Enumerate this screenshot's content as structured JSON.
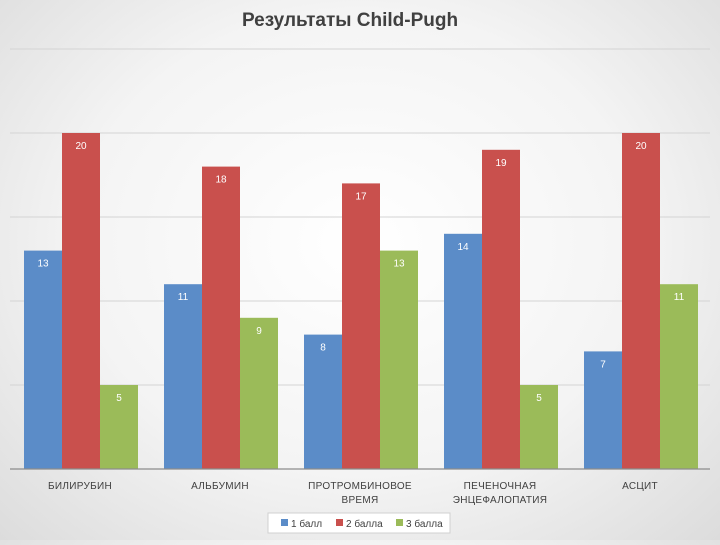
{
  "chart_data": {
    "type": "bar",
    "title": "Результаты Child-Pugh",
    "xlabel": "",
    "ylabel": "",
    "categories": [
      [
        "БИЛИРУБИН"
      ],
      [
        "АЛЬБУМИН"
      ],
      [
        "ПРОТРОМБИНОВОЕ",
        "ВРЕМЯ"
      ],
      [
        "ПЕЧЕНОЧНАЯ",
        "ЭНЦЕФАЛОПАТИЯ"
      ],
      [
        "АСЦИТ"
      ]
    ],
    "series": [
      {
        "name": "1 балл",
        "color": "#5b8cc8",
        "values": [
          13,
          11,
          8,
          14,
          7
        ]
      },
      {
        "name": "2 балла",
        "color": "#c9504d",
        "values": [
          20,
          18,
          17,
          19,
          20
        ]
      },
      {
        "name": "3 балла",
        "color": "#9bbb59",
        "values": [
          5,
          9,
          13,
          5,
          11
        ]
      }
    ],
    "ylim": [
      0,
      25
    ],
    "gridlines": [
      5,
      10,
      15,
      20,
      25
    ],
    "grid": true,
    "legend": "bottom",
    "data_labels": true
  }
}
